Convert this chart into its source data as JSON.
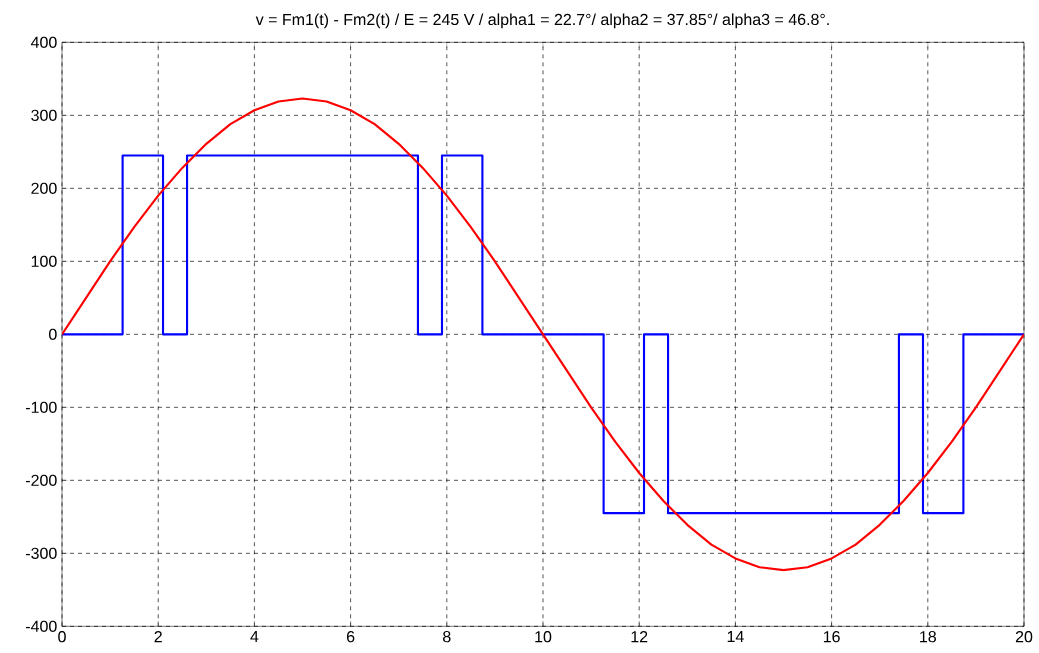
{
  "chart_data": {
    "type": "line",
    "title": "v = Fm1(t) - Fm2(t) / E = 245 V / alpha1 = 22.7°/ alpha2 = 37.85°/ alpha3 = 46.8°.",
    "xlim": [
      0,
      20
    ],
    "ylim": [
      -400,
      400
    ],
    "xticks": [
      0,
      2,
      4,
      6,
      8,
      10,
      12,
      14,
      16,
      18,
      20
    ],
    "yticks": [
      -400,
      -300,
      -200,
      -100,
      0,
      100,
      200,
      300,
      400
    ],
    "grid": true,
    "line_style": "solid",
    "series": [
      {
        "type": "step",
        "color": "#0000ff",
        "x": [
          0,
          1.26,
          2.1,
          2.6,
          7.4,
          7.9,
          8.74,
          11.26,
          12.1,
          12.6,
          17.4,
          17.9,
          18.74,
          20
        ],
        "values": [
          0,
          245,
          0,
          245,
          0,
          245,
          0,
          -245,
          0,
          -245,
          0,
          -245,
          0,
          0
        ]
      },
      {
        "color": "#ff0000",
        "x": [
          0,
          0.5,
          1,
          1.5,
          2,
          2.5,
          3,
          3.5,
          4,
          4.5,
          5,
          5.5,
          6,
          6.5,
          7,
          7.5,
          8,
          8.5,
          9,
          9.5,
          10,
          10.5,
          11,
          11.5,
          12,
          12.5,
          13,
          13.5,
          14,
          14.5,
          15,
          15.5,
          16,
          16.5,
          17,
          17.5,
          18,
          18.5,
          19,
          19.5,
          20
        ],
        "values": [
          0,
          50,
          100,
          147,
          190,
          228,
          261,
          288,
          307,
          319,
          323,
          319,
          307,
          288,
          261,
          228,
          190,
          147,
          100,
          50,
          0,
          -50,
          -100,
          -147,
          -190,
          -228,
          -261,
          -288,
          -307,
          -319,
          -323,
          -319,
          -307,
          -288,
          -261,
          -228,
          -190,
          -147,
          -100,
          -50,
          0
        ]
      }
    ]
  }
}
